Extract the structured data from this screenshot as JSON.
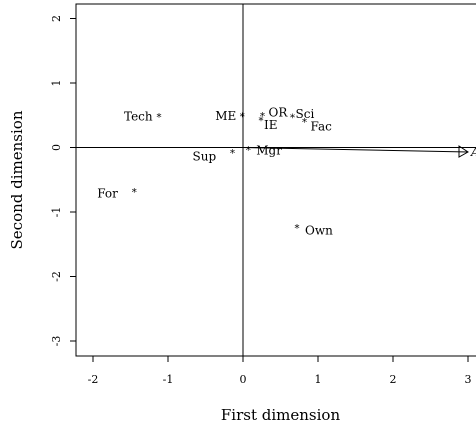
{
  "chart_data": {
    "type": "scatter",
    "xlabel": "First dimension",
    "ylabel": "Second dimension",
    "xlim": [
      -2.2,
      3.05
    ],
    "ylim": [
      -3.2,
      2.2
    ],
    "x_ticks": [
      "-2",
      "-1",
      "0",
      "1",
      "2",
      "3"
    ],
    "y_ticks": [
      "-3",
      "-2",
      "-1",
      "0",
      "1",
      "2"
    ],
    "grid": false,
    "points": [
      {
        "label": "Tech",
        "x": -1.12,
        "y": 0.48
      },
      {
        "label": "ME",
        "x": -0.01,
        "y": 0.49
      },
      {
        "label": "OR",
        "x": 0.26,
        "y": 0.5
      },
      {
        "label": "Sci",
        "x": 0.66,
        "y": 0.47
      },
      {
        "label": "IE",
        "x": 0.24,
        "y": 0.43
      },
      {
        "label": "Fac",
        "x": 0.82,
        "y": 0.4
      },
      {
        "label": "Mgr",
        "x": 0.07,
        "y": -0.03
      },
      {
        "label": "Sup",
        "x": -0.14,
        "y": -0.08
      },
      {
        "label": "For",
        "x": -1.45,
        "y": -0.68
      },
      {
        "label": "Own",
        "x": 0.72,
        "y": -1.24
      }
    ],
    "arrow": {
      "label": "A",
      "x": 3.0,
      "y": -0.07
    }
  }
}
